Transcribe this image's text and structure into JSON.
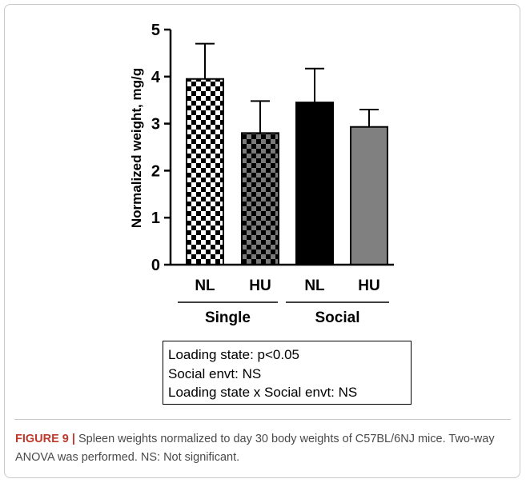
{
  "chart_data": {
    "type": "bar",
    "ylabel": "Normalized weight, mg/g",
    "ylim": [
      0,
      5
    ],
    "yticks": [
      "0",
      "1",
      "2",
      "3",
      "4",
      "5"
    ],
    "categories": [
      "NL",
      "HU",
      "NL",
      "HU"
    ],
    "groups": [
      "Single",
      "Social"
    ],
    "values": [
      3.95,
      2.8,
      3.45,
      2.93
    ],
    "errors": [
      0.75,
      0.68,
      0.72,
      0.37
    ],
    "fills": [
      "checker-white-black",
      "checker-gray-black",
      "#000000",
      "#808080"
    ]
  },
  "stats_box": {
    "lines": [
      "Loading state: p<0.05",
      "Social envt: NS",
      "Loading state x Social envt: NS"
    ]
  },
  "caption": {
    "label": "FIGURE 9 |",
    "text": " Spleen weights normalized to day 30 body weights of C57BL/6NJ mice. Two-way ANOVA was performed. NS: Not significant."
  },
  "colors": {
    "caption_label": "#c0392b",
    "caption_text": "#4a4a4a",
    "frame_border": "#c9c9c9"
  }
}
